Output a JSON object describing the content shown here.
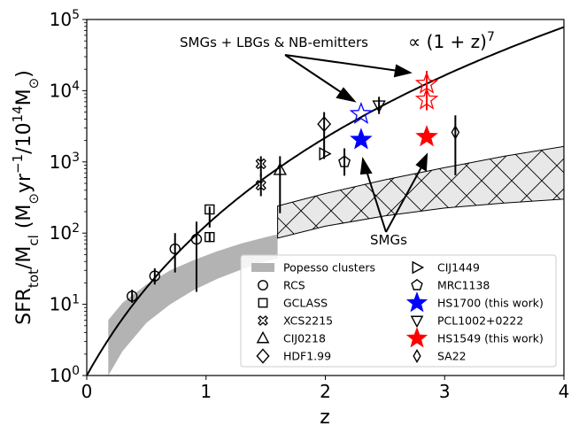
{
  "chart_data": {
    "type": "scatter",
    "xlabel": "z",
    "ylabel_main": "SFR",
    "ylabel_main_sub": "tot",
    "ylabel_sep": "/M",
    "ylabel_m_sub": "cl",
    "ylabel_paren": " (M",
    "ylabel_odot": "⊙",
    "ylabel_yr": "yr",
    "ylabel_yr_exp": "−1",
    "ylabel_over": "/10",
    "ylabel_ten_exp": "14",
    "ylabel_tail": "M",
    "ylabel_close": ")",
    "xlim": [
      0,
      4
    ],
    "ylim": [
      1,
      100000
    ],
    "yscale": "log",
    "x_ticks": [
      {
        "value": 0,
        "label": "0"
      },
      {
        "value": 1,
        "label": "1"
      },
      {
        "value": 2,
        "label": "2"
      },
      {
        "value": 3,
        "label": "3"
      },
      {
        "value": 4,
        "label": "4"
      }
    ],
    "y_ticks": [
      {
        "value": 1,
        "base": "10",
        "exp": "0"
      },
      {
        "value": 10,
        "base": "10",
        "exp": "1"
      },
      {
        "value": 100,
        "base": "10",
        "exp": "2"
      },
      {
        "value": 1000,
        "base": "10",
        "exp": "3"
      },
      {
        "value": 10000,
        "base": "10",
        "exp": "4"
      },
      {
        "value": 100000,
        "base": "10",
        "exp": "5"
      }
    ],
    "annotations": {
      "top_label": "SMGs + LBGs & NB-emitters",
      "curve_label": "∝ (1 + z)",
      "curve_label_exp": "7",
      "bottom_label": "SMGs"
    },
    "model_curve": {
      "form": "A(1+z)^7",
      "A": 1.0,
      "color": "#000000"
    },
    "popesso_band": {
      "name": "Popesso clusters",
      "color": "#b3b3b3",
      "points": [
        {
          "z": 0.18,
          "low": 1.0,
          "high": 6.0
        },
        {
          "z": 0.3,
          "low": 2.2,
          "high": 10.5
        },
        {
          "z": 0.5,
          "low": 5.5,
          "high": 19
        },
        {
          "z": 0.7,
          "low": 10,
          "high": 30
        },
        {
          "z": 0.9,
          "low": 16,
          "high": 42
        },
        {
          "z": 1.1,
          "low": 23,
          "high": 56
        },
        {
          "z": 1.3,
          "low": 31,
          "high": 72
        },
        {
          "z": 1.5,
          "low": 40,
          "high": 88
        },
        {
          "z": 1.6,
          "low": 44,
          "high": 96
        }
      ]
    },
    "hatched_band": {
      "color": "#e8e8e8",
      "points": [
        {
          "z": 1.6,
          "low": 85,
          "high": 240
        },
        {
          "z": 2.0,
          "low": 125,
          "high": 360
        },
        {
          "z": 2.5,
          "low": 175,
          "high": 560
        },
        {
          "z": 3.0,
          "low": 225,
          "high": 830
        },
        {
          "z": 3.5,
          "low": 265,
          "high": 1200
        },
        {
          "z": 4.0,
          "low": 300,
          "high": 1650
        }
      ]
    },
    "points": [
      {
        "name": "RCS",
        "z": 0.38,
        "y": 13,
        "ylo": 10.5,
        "yhi": 16,
        "marker": "circle",
        "color": "#000000"
      },
      {
        "name": "RCS",
        "z": 0.57,
        "y": 25,
        "ylo": 19,
        "yhi": 32,
        "marker": "circle",
        "color": "#000000"
      },
      {
        "name": "RCS",
        "z": 0.74,
        "y": 60,
        "ylo": 28,
        "yhi": 100,
        "marker": "circle",
        "color": "#000000"
      },
      {
        "name": "RCS",
        "z": 0.92,
        "y": 82,
        "ylo": 15,
        "yhi": 145,
        "marker": "circle",
        "color": "#000000"
      },
      {
        "name": "GCLASS",
        "z": 1.03,
        "y": 215,
        "ylo": 120,
        "yhi": 235,
        "marker": "square",
        "color": "#000000"
      },
      {
        "name": "GCLASS",
        "z": 1.03,
        "y": 88,
        "ylo": 75,
        "yhi": 100,
        "marker": "square",
        "color": "#000000"
      },
      {
        "name": "XCS2215",
        "z": 1.46,
        "y": 940,
        "ylo": 620,
        "yhi": 1200,
        "marker": "xcircle",
        "color": "#000000"
      },
      {
        "name": "XCS2215",
        "z": 1.46,
        "y": 470,
        "ylo": 330,
        "yhi": 680,
        "marker": "xcircle",
        "color": "#000000"
      },
      {
        "name": "CIJ0218",
        "z": 1.62,
        "y": 770,
        "ylo": 190,
        "yhi": 1200,
        "marker": "triangle-up",
        "color": "#000000"
      },
      {
        "name": "HDF1.99",
        "z": 1.99,
        "y": 3400,
        "ylo": 1100,
        "yhi": 5000,
        "marker": "diamond",
        "color": "#000000"
      },
      {
        "name": "CIJ1449",
        "z": 1.99,
        "y": 1300,
        "ylo": 1150,
        "yhi": 1450,
        "marker": "triangle-right",
        "color": "#000000"
      },
      {
        "name": "MRC1138",
        "z": 2.16,
        "y": 1000,
        "ylo": 640,
        "yhi": 1550,
        "marker": "pentagon",
        "color": "#000000"
      },
      {
        "name": "HS1700 (this work)",
        "z": 2.3,
        "y": 2050,
        "marker": "star-filled",
        "color": "#0000ff"
      },
      {
        "name": "HS1700 (this work)",
        "z": 2.3,
        "y": 4700,
        "marker": "star-open",
        "color": "#0000ff"
      },
      {
        "name": "PCL1002+0222",
        "z": 2.45,
        "y": 6200,
        "ylo": 4700,
        "yhi": 8200,
        "marker": "triangle-down",
        "color": "#000000"
      },
      {
        "name": "HS1549 (this work)",
        "z": 2.85,
        "y": 2250,
        "marker": "star-filled",
        "color": "#ff0000"
      },
      {
        "name": "HS1549 (this work)",
        "z": 2.85,
        "y": 12500,
        "ylo": 9000,
        "yhi": 19000,
        "marker": "star-open",
        "color": "#ff0000"
      },
      {
        "name": "HS1549 (this work)",
        "z": 2.85,
        "y": 7500,
        "ylo": 5300,
        "yhi": 10500,
        "marker": "star-open",
        "color": "#ff0000"
      },
      {
        "name": "SA22",
        "z": 3.09,
        "y": 2600,
        "ylo": 650,
        "yhi": 4500,
        "marker": "thin-diamond",
        "color": "#000000"
      }
    ],
    "legend": {
      "placement": "lower-right",
      "entries": [
        {
          "label": "Popesso clusters",
          "marker": "band",
          "color": "#b3b3b3"
        },
        {
          "label": "RCS",
          "marker": "circle",
          "color": "#000000"
        },
        {
          "label": "GCLASS",
          "marker": "square",
          "color": "#000000"
        },
        {
          "label": "XCS2215",
          "marker": "xcircle",
          "color": "#000000"
        },
        {
          "label": "CIJ0218",
          "marker": "triangle-up",
          "color": "#000000"
        },
        {
          "label": "HDF1.99",
          "marker": "diamond",
          "color": "#000000"
        },
        {
          "label": "CIJ1449",
          "marker": "triangle-right",
          "color": "#000000"
        },
        {
          "label": "MRC1138",
          "marker": "pentagon",
          "color": "#000000"
        },
        {
          "label": "HS1700 (this work)",
          "marker": "star-filled",
          "color": "#0000ff"
        },
        {
          "label": "PCL1002+0222",
          "marker": "triangle-down",
          "color": "#000000"
        },
        {
          "label": "HS1549 (this work)",
          "marker": "star-filled",
          "color": "#ff0000"
        },
        {
          "label": "SA22",
          "marker": "thin-diamond",
          "color": "#000000"
        }
      ]
    }
  }
}
